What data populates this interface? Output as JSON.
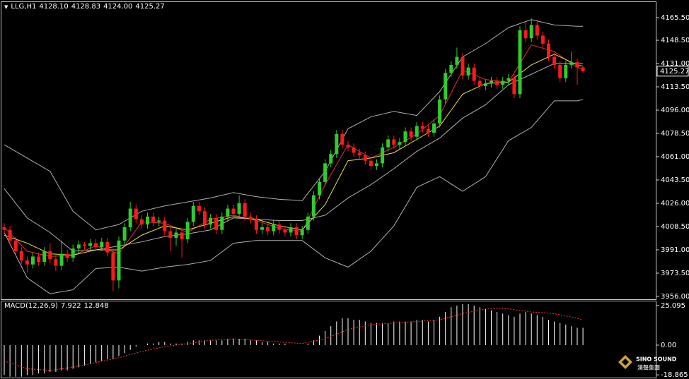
{
  "header": {
    "symbol": "LLG,H1",
    "quote": [
      {
        "value": 4128.1,
        "label": "4128.10"
      },
      {
        "value": 4128.83,
        "label": "4128.83"
      },
      {
        "value": 4124,
        "label": "4124.00"
      },
      {
        "value": 4125.27,
        "label": "4125.27"
      }
    ]
  },
  "logo": {
    "text": "SINO SOUND",
    "sub": "漢聲集團"
  },
  "chart_data": [
    {
      "type": "candlestick",
      "open": [
        4008,
        4006,
        3998,
        3990,
        3983,
        3980,
        3986,
        3982,
        3990,
        3984,
        3979,
        3988,
        3985,
        3992,
        3995,
        3994,
        3996,
        3993,
        3997,
        3989,
        3968,
        3998,
        4008,
        4022,
        4014,
        4010,
        4016,
        4012,
        4013,
        4005,
        4000,
        4004,
        3999,
        4012,
        4024,
        4020,
        4010,
        4015,
        4006,
        4016,
        4022,
        4018,
        4026,
        4016,
        4014,
        4006,
        4008,
        4005,
        4010,
        4006,
        4004,
        4008,
        4002,
        4006,
        4016,
        4032,
        4042,
        4056,
        4063,
        4078,
        4070,
        4068,
        4064,
        4062,
        4058,
        4054,
        4056,
        4068,
        4074,
        4070,
        4072,
        4080,
        4076,
        4084,
        4082,
        4079,
        4086,
        4104,
        4124,
        4130,
        4136,
        4122,
        4128,
        4118,
        4114,
        4116,
        4118,
        4115,
        4118,
        4120,
        4108,
        4156,
        4150,
        4160,
        4152,
        4146,
        4136,
        4130,
        4120,
        4130,
        4132,
        4128.1
      ],
      "high": [
        4011,
        4009,
        4001,
        3993,
        3986,
        3989,
        3989,
        3993,
        3996,
        3987,
        3998,
        3991,
        3995,
        3998,
        3997,
        3999,
        3999,
        4000,
        4000,
        3992,
        4001,
        4011,
        4027,
        4025,
        4017,
        4019,
        4019,
        4016,
        4016,
        4008,
        4007,
        4007,
        4015,
        4027,
        4027,
        4023,
        4018,
        4018,
        4019,
        4025,
        4025,
        4032,
        4029,
        4019,
        4017,
        4011,
        4011,
        4013,
        4013,
        4009,
        4011,
        4011,
        4009,
        4019,
        4035,
        4045,
        4059,
        4066,
        4081,
        4081,
        4073,
        4071,
        4067,
        4065,
        4061,
        4059,
        4071,
        4077,
        4077,
        4075,
        4083,
        4083,
        4087,
        4087,
        4085,
        4089,
        4107,
        4127,
        4133,
        4143,
        4139,
        4131,
        4131,
        4121,
        4119,
        4121,
        4121,
        4121,
        4123,
        4123,
        4159,
        4162,
        4165,
        4163,
        4155,
        4149,
        4139,
        4133,
        4133,
        4140,
        4135,
        4128.83
      ],
      "low": [
        4003,
        3995,
        3987,
        3980,
        3974,
        3977,
        3979,
        3979,
        3981,
        3975,
        3976,
        3982,
        3982,
        3989,
        3991,
        3991,
        3990,
        3990,
        3986,
        3960,
        3962,
        3995,
        4005,
        4011,
        4007,
        4007,
        4009,
        4009,
        4002,
        3990,
        3994,
        3985,
        3996,
        4009,
        4017,
        4007,
        4007,
        4003,
        4003,
        4013,
        4015,
        4015,
        4013,
        4011,
        4003,
        4003,
        4002,
        4002,
        4003,
        4001,
        4001,
        3999,
        3999,
        4003,
        4013,
        4029,
        4039,
        4053,
        4060,
        4067,
        4065,
        4061,
        4059,
        4055,
        4051,
        4051,
        4053,
        4065,
        4067,
        4067,
        4069,
        4073,
        4073,
        4079,
        4076,
        4076,
        4083,
        4101,
        4121,
        4127,
        4119,
        4119,
        4115,
        4111,
        4111,
        4113,
        4112,
        4112,
        4115,
        4105,
        4105,
        4147,
        4147,
        4149,
        4143,
        4133,
        4127,
        4117,
        4117,
        4127,
        4115,
        4124
      ],
      "close": [
        4006,
        3998,
        3990,
        3983,
        3980,
        3986,
        3982,
        3990,
        3984,
        3979,
        3988,
        3985,
        3992,
        3995,
        3994,
        3996,
        3993,
        3997,
        3989,
        3968,
        3998,
        4008,
        4022,
        4014,
        4010,
        4016,
        4012,
        4013,
        4005,
        4000,
        4004,
        3999,
        4012,
        4024,
        4020,
        4010,
        4015,
        4006,
        4016,
        4022,
        4018,
        4026,
        4016,
        4014,
        4006,
        4008,
        4005,
        4010,
        4006,
        4004,
        4008,
        4002,
        4006,
        4016,
        4032,
        4042,
        4056,
        4063,
        4078,
        4070,
        4068,
        4064,
        4062,
        4058,
        4054,
        4056,
        4068,
        4074,
        4070,
        4072,
        4080,
        4076,
        4084,
        4082,
        4079,
        4086,
        4104,
        4124,
        4130,
        4136,
        4122,
        4128,
        4118,
        4114,
        4116,
        4118,
        4115,
        4118,
        4120,
        4108,
        4156,
        4150,
        4160,
        4152,
        4146,
        4136,
        4130,
        4120,
        4130,
        4132,
        4128.1,
        4125.27
      ],
      "colors": {
        "up": "#2ecc2e",
        "down": "#ff1a1a"
      },
      "ylim": [
        3954.4,
        4176.1
      ],
      "yticks": [
        {
          "value": 4165.5,
          "label": "4165.50"
        },
        {
          "value": 4148.5,
          "label": "4148.50"
        },
        {
          "value": 4131,
          "label": "4131.00"
        },
        {
          "value": 4113.5,
          "label": "4113.50"
        },
        {
          "value": 4096,
          "label": "4096.00"
        },
        {
          "value": 4078.5,
          "label": "4078.50"
        },
        {
          "value": 4061,
          "label": "4061.00"
        },
        {
          "value": 4043.5,
          "label": "4043.50"
        },
        {
          "value": 4026,
          "label": "4026.00"
        },
        {
          "value": 4008.5,
          "label": "4008.50"
        },
        {
          "value": 3991,
          "label": "3991.00"
        },
        {
          "value": 3973.5,
          "label": "3973.50"
        },
        {
          "value": 3956,
          "label": "3956.00"
        }
      ],
      "last_price": 4125.27,
      "overlays": {
        "x": [
          0,
          4,
          8,
          12,
          16,
          20,
          24,
          28,
          32,
          36,
          40,
          44,
          48,
          52,
          56,
          60,
          64,
          68,
          72,
          76,
          80,
          84,
          88,
          92,
          96,
          100,
          101
        ],
        "series": [
          {
            "color": "#b0b0b0",
            "values": [
              4070,
              4060,
              4050,
              4020,
              4006,
              4010,
              4020,
              4024,
              4027,
              4030,
              4034,
              4031,
              4029,
              4028,
              4050,
              4082,
              4091,
              4095,
              4092,
              4110,
              4136,
              4146,
              4158,
              4164,
              4160,
              4159,
              4159
            ]
          },
          {
            "color": "#b0b0b0",
            "values": [
              4004,
              3970,
              3958,
              3961,
              3977,
              3978,
              3975,
              3978,
              3980,
              3983,
              3996,
              3998,
              3998,
              3998,
              3985,
              3978,
              3990,
              4009,
              4038,
              4046,
              4035,
              4046,
              4073,
              4083,
              4103,
              4103,
              4104
            ]
          },
          {
            "color": "#b0b0b0",
            "values": [
              4037,
              4015,
              4004,
              3990,
              3991,
              3994,
              3997,
              4001,
              4003,
              4006,
              4015,
              4014,
              4013,
              4013,
              4017,
              4030,
              4040,
              4052,
              4065,
              4075,
              4090,
              4100,
              4115,
              4123,
              4131,
              4131,
              4131
            ]
          },
          {
            "color": "#e03030",
            "values": [
              4008,
              3990,
              3986,
              3987,
              3994,
              3988,
              4012,
              4011,
              4004,
              4014,
              4017,
              4013,
              4007,
              4005,
              4040,
              4070,
              4060,
              4068,
              4078,
              4092,
              4126,
              4119,
              4117,
              4145,
              4140,
              4128,
              4127
            ]
          },
          {
            "color": "#f0e040",
            "values": [
              4002,
              3996,
              3988,
              3987,
              3991,
              3991,
              4002,
              4009,
              4006,
              4011,
              4016,
              4014,
              4009,
              4006,
              4025,
              4058,
              4060,
              4064,
              4074,
              4084,
              4108,
              4116,
              4117,
              4130,
              4138,
              4130,
              4129
            ]
          }
        ]
      }
    },
    {
      "type": "macd",
      "title": "MACD(12,26,9)",
      "readout": [
        7.922,
        12.848
      ],
      "values": [
        -19,
        -20,
        -20,
        -20,
        -19,
        -19,
        -18,
        -18,
        -17,
        -17,
        -16,
        -16,
        -15,
        -14,
        -13,
        -12,
        -11,
        -10,
        -9,
        -9,
        -7,
        -5,
        -3,
        -1,
        0,
        1,
        1,
        2,
        2,
        1,
        1,
        1,
        2,
        3,
        3,
        3,
        3,
        3,
        3,
        4,
        4,
        4,
        4,
        3,
        3,
        2,
        2,
        1,
        1,
        1,
        0,
        0,
        0,
        1,
        3,
        6,
        9,
        12,
        15,
        17,
        17,
        16,
        16,
        15,
        14,
        14,
        14,
        14,
        15,
        15,
        15,
        15,
        16,
        16,
        15,
        16,
        18,
        21,
        24,
        25,
        26,
        26,
        25,
        24,
        23,
        22,
        21,
        20,
        19,
        18,
        20,
        21,
        20,
        19,
        18,
        16,
        15,
        14,
        13,
        12,
        11,
        11
      ],
      "color": "#ffffff",
      "signal": {
        "x": [
          0,
          4,
          8,
          12,
          16,
          20,
          24,
          28,
          32,
          36,
          40,
          44,
          48,
          52,
          56,
          60,
          64,
          68,
          72,
          76,
          80,
          84,
          88,
          92,
          96,
          100,
          101
        ],
        "values": [
          -10,
          -15,
          -16,
          -14,
          -11,
          -8,
          -4,
          -1,
          1,
          3,
          4,
          3,
          2,
          1,
          4,
          10,
          13,
          14,
          15,
          16,
          20,
          23,
          23,
          21,
          20,
          17,
          16
        ],
        "color": "#ff3030"
      },
      "ylim": [
        -20.6,
        27.3
      ],
      "yticks": [
        25.095,
        {
          "value": 0,
          "label": "0.00"
        },
        -18.865
      ]
    }
  ]
}
